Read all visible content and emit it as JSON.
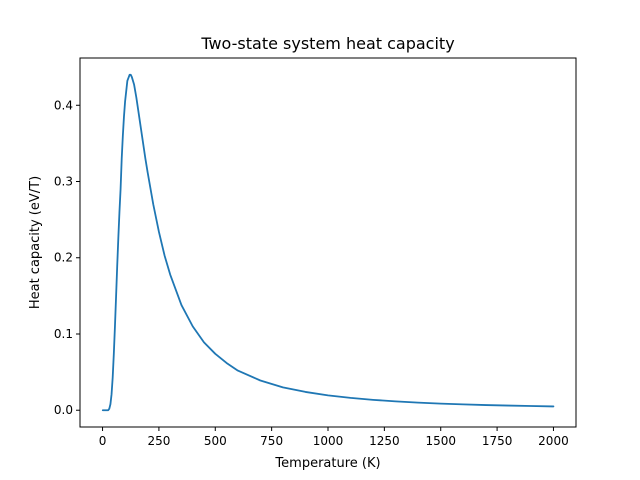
{
  "chart_data": {
    "type": "line",
    "title": "Two-state system heat capacity",
    "xlabel": "Temperature (K)",
    "ylabel": "Heat capacity (eV/T)",
    "xlim": [
      -100,
      2100
    ],
    "ylim": [
      -0.022,
      0.462
    ],
    "xticks": [
      0,
      250,
      500,
      750,
      1000,
      1250,
      1500,
      1750,
      2000
    ],
    "xtick_labels": [
      "0",
      "250",
      "500",
      "750",
      "1000",
      "1250",
      "1500",
      "1750",
      "2000"
    ],
    "yticks": [
      0.0,
      0.1,
      0.2,
      0.3,
      0.4
    ],
    "ytick_labels": [
      "0.0",
      "0.1",
      "0.2",
      "0.3",
      "0.4"
    ],
    "grid": false,
    "series": [
      {
        "color": "#1f77b4",
        "x": [
          1,
          10,
          20,
          25,
          30,
          35,
          40,
          45,
          50,
          55,
          60,
          65,
          70,
          75,
          80,
          85,
          90,
          95,
          100,
          110,
          120,
          125,
          130,
          140,
          150,
          160,
          175,
          190,
          200,
          225,
          250,
          275,
          300,
          350,
          400,
          450,
          500,
          550,
          600,
          700,
          800,
          900,
          1000,
          1100,
          1200,
          1300,
          1400,
          1500,
          1600,
          1700,
          1800,
          1900,
          2000
        ],
        "y": [
          0.0,
          0.0,
          0.0,
          0.0,
          0.002,
          0.008,
          0.021,
          0.043,
          0.074,
          0.11,
          0.149,
          0.189,
          0.226,
          0.26,
          0.29,
          0.33,
          0.36,
          0.385,
          0.405,
          0.432,
          0.44,
          0.44,
          0.437,
          0.427,
          0.41,
          0.39,
          0.36,
          0.33,
          0.312,
          0.27,
          0.234,
          0.203,
          0.178,
          0.138,
          0.11,
          0.089,
          0.074,
          0.062,
          0.052,
          0.039,
          0.03,
          0.024,
          0.0195,
          0.0162,
          0.0136,
          0.0116,
          0.01,
          0.0087,
          0.0077,
          0.0068,
          0.0061,
          0.0055,
          0.005
        ]
      }
    ]
  }
}
